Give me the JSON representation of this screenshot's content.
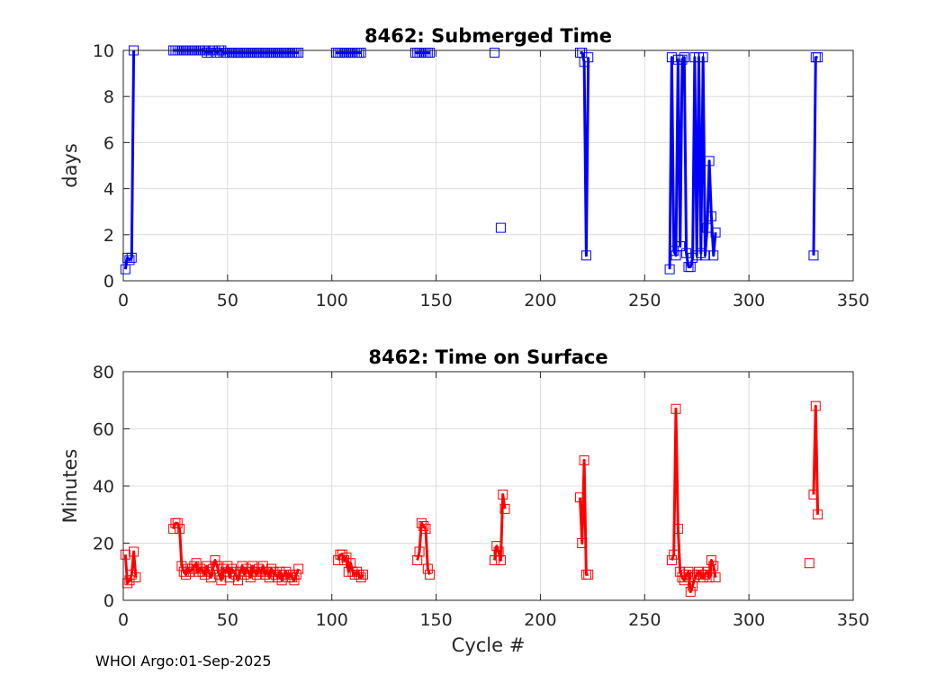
{
  "footer": "WHOI Argo:01-Sep-2025",
  "chart_data": [
    {
      "type": "line",
      "title": "8462: Submerged Time",
      "xlabel": "",
      "ylabel": "days",
      "xlim": [
        0,
        350
      ],
      "ylim": [
        0,
        10
      ],
      "xticks": [
        "0",
        "50",
        "100",
        "150",
        "200",
        "250",
        "300",
        "350"
      ],
      "yticks": [
        "0",
        "2",
        "4",
        "6",
        "8",
        "10"
      ],
      "grid": true,
      "color": "#0000ff",
      "series": [
        {
          "name": "Submerged Time",
          "x": [
            1,
            2,
            3,
            4,
            5
          ],
          "y": [
            0.5,
            1.0,
            0.9,
            1.0,
            10.0
          ]
        },
        {
          "name": "Submerged Time",
          "x": [
            24,
            25,
            26,
            27,
            28,
            29,
            30,
            31,
            32,
            33,
            34,
            35,
            36,
            37,
            38,
            39,
            40,
            41,
            42,
            43,
            44,
            45,
            46,
            47,
            48,
            49,
            50,
            51,
            52,
            53,
            54,
            55,
            56,
            57,
            58,
            59,
            60,
            61,
            62,
            63,
            64,
            65,
            66,
            67,
            68,
            69,
            70,
            71,
            72,
            73,
            74,
            75,
            76,
            77,
            78,
            79,
            80,
            81,
            82,
            83,
            84
          ],
          "y": [
            10,
            10,
            10,
            10,
            10,
            10,
            10,
            10,
            10,
            10,
            10,
            10,
            10,
            10,
            10,
            10,
            9.9,
            10,
            9.9,
            10,
            10,
            9.9,
            10,
            10,
            9.9,
            9.9,
            9.9,
            9.9,
            9.9,
            9.9,
            9.9,
            9.9,
            9.9,
            9.9,
            9.9,
            9.9,
            9.9,
            9.9,
            9.9,
            9.9,
            9.9,
            9.9,
            9.9,
            9.9,
            9.9,
            9.9,
            9.9,
            9.9,
            9.9,
            9.9,
            9.9,
            9.9,
            9.9,
            9.9,
            9.9,
            9.9,
            9.9,
            9.9,
            9.9,
            9.9,
            9.9
          ]
        },
        {
          "name": "Submerged Time",
          "x": [
            102,
            103,
            104,
            105,
            106,
            107,
            108,
            109,
            110,
            111,
            112,
            113,
            114
          ],
          "y": [
            9.9,
            9.9,
            9.9,
            9.9,
            9.9,
            9.9,
            9.9,
            9.9,
            9.9,
            9.9,
            9.9,
            9.9,
            9.9
          ]
        },
        {
          "name": "Submerged Time",
          "x": [
            140,
            141,
            142,
            143,
            144,
            145,
            146,
            147
          ],
          "y": [
            9.9,
            9.9,
            9.9,
            9.9,
            9.9,
            9.9,
            9.9,
            9.9
          ]
        },
        {
          "name": "Submerged Time",
          "x": [
            178
          ],
          "y": [
            9.9
          ]
        },
        {
          "name": "Submerged Time",
          "x": [
            181
          ],
          "y": [
            2.3
          ]
        },
        {
          "name": "Submerged Time",
          "x": [
            219,
            220,
            221,
            222,
            223
          ],
          "y": [
            9.9,
            9.9,
            9.5,
            1.1,
            9.7
          ]
        },
        {
          "name": "Submerged Time",
          "x": [
            262,
            263,
            264,
            265,
            266,
            267,
            268,
            269,
            270,
            271,
            272,
            273,
            274,
            275,
            276,
            277,
            278,
            279,
            280,
            281,
            282,
            283,
            284
          ],
          "y": [
            0.5,
            9.7,
            1.3,
            1.1,
            9.6,
            1.5,
            9.6,
            9.7,
            1.2,
            0.6,
            0.6,
            1.0,
            9.7,
            1.1,
            9.7,
            1.2,
            9.7,
            1.1,
            2.3,
            5.2,
            2.8,
            1.1,
            2.1
          ]
        },
        {
          "name": "Submerged Time",
          "x": [
            331,
            332,
            333
          ],
          "y": [
            1.1,
            9.7,
            9.7
          ]
        }
      ]
    },
    {
      "type": "line",
      "title": "8462: Time on Surface",
      "xlabel": "Cycle #",
      "ylabel": "Minutes",
      "xlim": [
        0,
        350
      ],
      "ylim": [
        0,
        80
      ],
      "xticks": [
        "0",
        "50",
        "100",
        "150",
        "200",
        "250",
        "300",
        "350"
      ],
      "yticks": [
        "0",
        "20",
        "40",
        "60",
        "80"
      ],
      "grid": true,
      "color": "#ff0000",
      "series": [
        {
          "name": "Time on Surface",
          "x": [
            1,
            2,
            3,
            4,
            5,
            6
          ],
          "y": [
            16,
            6,
            7,
            9,
            17,
            8
          ]
        },
        {
          "name": "Time on Surface",
          "x": [
            24,
            25,
            26,
            27,
            28,
            29,
            30,
            31,
            32,
            33,
            34,
            35,
            36,
            37,
            38,
            39,
            40,
            41,
            42,
            43,
            44,
            45,
            46,
            47,
            48,
            49,
            50,
            51,
            52,
            53,
            54,
            55,
            56,
            57,
            58,
            59,
            60,
            61,
            62,
            63,
            64,
            65,
            66,
            67,
            68,
            69,
            70,
            71,
            72,
            73,
            74,
            75,
            76,
            77,
            78,
            79,
            80,
            81,
            82,
            83,
            84
          ],
          "y": [
            25,
            27,
            27,
            25,
            12,
            10,
            9,
            11,
            10,
            11,
            12,
            13,
            10,
            11,
            10,
            9,
            12,
            10,
            8,
            11,
            14,
            12,
            9,
            7,
            11,
            10,
            12,
            8,
            11,
            10,
            9,
            7,
            10,
            12,
            9,
            11,
            10,
            8,
            12,
            10,
            9,
            11,
            10,
            12,
            9,
            10,
            8,
            11,
            10,
            9,
            8,
            10,
            7,
            9,
            10,
            8,
            9,
            8,
            7,
            9,
            11
          ]
        },
        {
          "name": "Time on Surface",
          "x": [
            103,
            104,
            105,
            106,
            107,
            108,
            109,
            110,
            111,
            112,
            113,
            114,
            115
          ],
          "y": [
            14,
            16,
            16,
            14,
            15,
            10,
            13,
            10,
            9,
            10,
            9,
            8,
            9
          ]
        },
        {
          "name": "Time on Surface",
          "x": [
            141,
            142,
            143,
            144,
            145,
            146,
            147
          ],
          "y": [
            14,
            17,
            27,
            26,
            25,
            11,
            9
          ]
        },
        {
          "name": "Time on Surface",
          "x": [
            178,
            179,
            180,
            181,
            182,
            183
          ],
          "y": [
            14,
            19,
            17,
            14,
            37,
            32
          ]
        },
        {
          "name": "Time on Surface",
          "x": [
            219,
            220,
            221,
            222,
            223
          ],
          "y": [
            36,
            20,
            49,
            9,
            9
          ]
        },
        {
          "name": "Time on Surface",
          "x": [
            263,
            264,
            265,
            266,
            267,
            268,
            269,
            270,
            271,
            272,
            273,
            274,
            275,
            276,
            277,
            278,
            279,
            280,
            281,
            282,
            283,
            284
          ],
          "y": [
            14,
            16,
            67,
            25,
            10,
            8,
            7,
            9,
            10,
            3,
            5,
            8,
            9,
            10,
            9,
            8,
            9,
            10,
            8,
            14,
            12,
            8
          ]
        },
        {
          "name": "Time on Surface",
          "x": [
            329
          ],
          "y": [
            13
          ]
        },
        {
          "name": "Time on Surface",
          "x": [
            331,
            332,
            333
          ],
          "y": [
            37,
            68,
            30
          ]
        }
      ]
    }
  ]
}
